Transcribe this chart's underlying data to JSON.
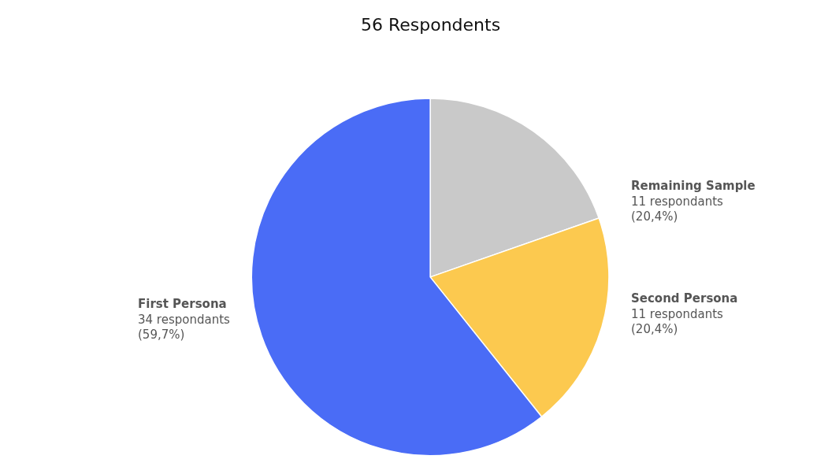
{
  "chart_data": {
    "type": "pie",
    "title": "56 Respondents",
    "categories": [
      "Remaining Sample",
      "Second Persona",
      "First Persona"
    ],
    "values": [
      11,
      11,
      34
    ],
    "colors": [
      "#c9c9c9",
      "#fcc94f",
      "#4a6cf6"
    ],
    "value_labels": [
      "11 respondants\n(20,4%)",
      "11 respondants\n(20,4%)",
      "34 respondants\n(59,7%)"
    ],
    "legend": false
  }
}
